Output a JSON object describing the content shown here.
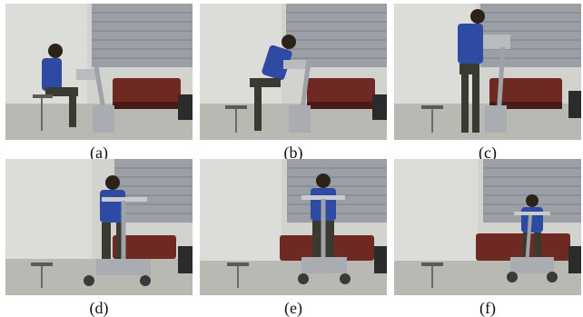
{
  "panels": [
    {
      "label": "(a)",
      "stage": "seated"
    },
    {
      "label": "(b)",
      "stage": "rising"
    },
    {
      "label": "(c)",
      "stage": "standing"
    },
    {
      "label": "(d)",
      "stage": "walking-with-robot"
    },
    {
      "label": "(e)",
      "stage": "walking-with-robot"
    },
    {
      "label": "(f)",
      "stage": "walking-with-robot"
    }
  ]
}
